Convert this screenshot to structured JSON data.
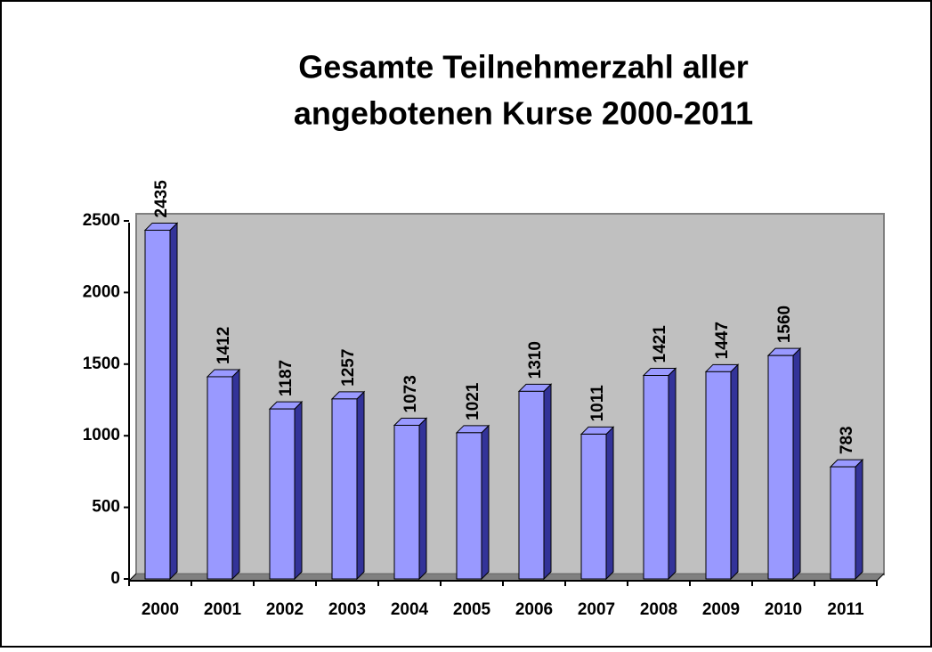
{
  "chart_data": {
    "type": "bar3d",
    "title": [
      "Gesamte Teilnehmerzahl aller",
      "angebotenen Kurse 2000-2011"
    ],
    "categories": [
      "2000",
      "2001",
      "2002",
      "2003",
      "2004",
      "2005",
      "2006",
      "2007",
      "2008",
      "2009",
      "2010",
      "2011"
    ],
    "values": [
      2435,
      1412,
      1187,
      1257,
      1073,
      1021,
      1310,
      1011,
      1421,
      1447,
      1560,
      783
    ],
    "color": "#9999ff",
    "ylim": [
      0,
      2500
    ],
    "yticks": [
      0,
      500,
      1000,
      1500,
      2000,
      2500
    ]
  }
}
